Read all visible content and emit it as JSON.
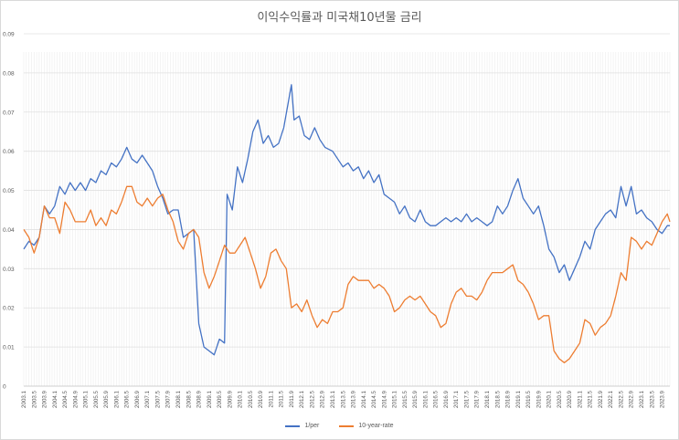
{
  "chart_data": {
    "type": "line",
    "title": "이익수익률과 미국채10년물 금리",
    "xlabel": "",
    "ylabel": "",
    "ylim": [
      0,
      0.09
    ],
    "yticks": [
      "0",
      "0.01",
      "0.02",
      "0.03",
      "0.04",
      "0.05",
      "0.06",
      "0.07",
      "0.08",
      "0.09"
    ],
    "grid": "horizontal",
    "legend_position": "bottom",
    "x_tick_labels": [
      "2003.1",
      "2003.5",
      "2003.9",
      "2004.1",
      "2004.5",
      "2004.9",
      "2005.1",
      "2005.5",
      "2005.9",
      "2006.1",
      "2006.5",
      "2006.9",
      "2007.1",
      "2007.5",
      "2007.9",
      "2008.1",
      "2008.5",
      "2008.9",
      "2009.1",
      "2009.5",
      "2009.9",
      "2010.1",
      "2010.5",
      "2010.9",
      "2011.1",
      "2011.5",
      "2011.9",
      "2012.1",
      "2012.5",
      "2012.9",
      "2013.1",
      "2013.5",
      "2013.9",
      "2014.1",
      "2014.5",
      "2014.9",
      "2015.1",
      "2015.5",
      "2015.9",
      "2016.1",
      "2016.5",
      "2016.9",
      "2017.1",
      "2017.5",
      "2017.9",
      "2018.1",
      "2018.5",
      "2018.9",
      "2019.1",
      "2019.5",
      "2019.9",
      "2020.1",
      "2020.5",
      "2020.9",
      "2021.1",
      "2021.5",
      "2021.9",
      "2022.1",
      "2022.5",
      "2022.9",
      "2023.1",
      "2023.5",
      "2023.9"
    ],
    "colors": {
      "1/per": "#4472C4",
      "10-year-rate": "#ED7D31"
    },
    "x_start": "2003-01",
    "x_end": "2023-12",
    "series": [
      {
        "name": "1/per",
        "points": [
          [
            "2003-01",
            0.035
          ],
          [
            "2003-03",
            0.037
          ],
          [
            "2003-05",
            0.036
          ],
          [
            "2003-07",
            0.038
          ],
          [
            "2003-09",
            0.046
          ],
          [
            "2003-11",
            0.044
          ],
          [
            "2004-01",
            0.046
          ],
          [
            "2004-03",
            0.051
          ],
          [
            "2004-05",
            0.049
          ],
          [
            "2004-07",
            0.052
          ],
          [
            "2004-09",
            0.05
          ],
          [
            "2004-11",
            0.052
          ],
          [
            "2005-01",
            0.05
          ],
          [
            "2005-03",
            0.053
          ],
          [
            "2005-05",
            0.052
          ],
          [
            "2005-07",
            0.055
          ],
          [
            "2005-09",
            0.054
          ],
          [
            "2005-11",
            0.057
          ],
          [
            "2006-01",
            0.056
          ],
          [
            "2006-03",
            0.058
          ],
          [
            "2006-05",
            0.061
          ],
          [
            "2006-07",
            0.058
          ],
          [
            "2006-09",
            0.057
          ],
          [
            "2006-11",
            0.059
          ],
          [
            "2007-01",
            0.057
          ],
          [
            "2007-03",
            0.055
          ],
          [
            "2007-05",
            0.051
          ],
          [
            "2007-07",
            0.048
          ],
          [
            "2007-09",
            0.044
          ],
          [
            "2007-11",
            0.045
          ],
          [
            "2008-01",
            0.045
          ],
          [
            "2008-03",
            0.038
          ],
          [
            "2008-05",
            0.039
          ],
          [
            "2008-07",
            0.04
          ],
          [
            "2008-09",
            0.016
          ],
          [
            "2008-11",
            0.01
          ],
          [
            "2009-01",
            0.009
          ],
          [
            "2009-03",
            0.008
          ],
          [
            "2009-05",
            0.012
          ],
          [
            "2009-07",
            0.011
          ],
          [
            "2009-08",
            0.049
          ],
          [
            "2009-10",
            0.045
          ],
          [
            "2009-12",
            0.056
          ],
          [
            "2010-02",
            0.052
          ],
          [
            "2010-04",
            0.058
          ],
          [
            "2010-06",
            0.065
          ],
          [
            "2010-08",
            0.068
          ],
          [
            "2010-10",
            0.062
          ],
          [
            "2010-12",
            0.064
          ],
          [
            "2011-02",
            0.061
          ],
          [
            "2011-04",
            0.062
          ],
          [
            "2011-06",
            0.066
          ],
          [
            "2011-09",
            0.077
          ],
          [
            "2011-10",
            0.068
          ],
          [
            "2011-12",
            0.069
          ],
          [
            "2012-02",
            0.064
          ],
          [
            "2012-04",
            0.063
          ],
          [
            "2012-06",
            0.066
          ],
          [
            "2012-08",
            0.063
          ],
          [
            "2012-10",
            0.061
          ],
          [
            "2013-01",
            0.06
          ],
          [
            "2013-03",
            0.058
          ],
          [
            "2013-05",
            0.056
          ],
          [
            "2013-07",
            0.057
          ],
          [
            "2013-09",
            0.055
          ],
          [
            "2013-11",
            0.056
          ],
          [
            "2014-01",
            0.053
          ],
          [
            "2014-03",
            0.055
          ],
          [
            "2014-05",
            0.052
          ],
          [
            "2014-07",
            0.054
          ],
          [
            "2014-09",
            0.049
          ],
          [
            "2014-11",
            0.048
          ],
          [
            "2015-01",
            0.047
          ],
          [
            "2015-03",
            0.044
          ],
          [
            "2015-05",
            0.046
          ],
          [
            "2015-07",
            0.043
          ],
          [
            "2015-09",
            0.042
          ],
          [
            "2015-11",
            0.045
          ],
          [
            "2016-01",
            0.042
          ],
          [
            "2016-03",
            0.041
          ],
          [
            "2016-05",
            0.041
          ],
          [
            "2016-07",
            0.042
          ],
          [
            "2016-09",
            0.043
          ],
          [
            "2016-11",
            0.042
          ],
          [
            "2017-01",
            0.043
          ],
          [
            "2017-03",
            0.042
          ],
          [
            "2017-05",
            0.044
          ],
          [
            "2017-07",
            0.042
          ],
          [
            "2017-09",
            0.043
          ],
          [
            "2017-11",
            0.042
          ],
          [
            "2018-01",
            0.041
          ],
          [
            "2018-03",
            0.042
          ],
          [
            "2018-05",
            0.046
          ],
          [
            "2018-07",
            0.044
          ],
          [
            "2018-09",
            0.046
          ],
          [
            "2018-11",
            0.05
          ],
          [
            "2019-01",
            0.053
          ],
          [
            "2019-03",
            0.048
          ],
          [
            "2019-05",
            0.046
          ],
          [
            "2019-07",
            0.044
          ],
          [
            "2019-09",
            0.046
          ],
          [
            "2019-11",
            0.041
          ],
          [
            "2020-01",
            0.035
          ],
          [
            "2020-03",
            0.033
          ],
          [
            "2020-05",
            0.029
          ],
          [
            "2020-07",
            0.031
          ],
          [
            "2020-09",
            0.027
          ],
          [
            "2020-11",
            0.03
          ],
          [
            "2021-01",
            0.033
          ],
          [
            "2021-03",
            0.037
          ],
          [
            "2021-05",
            0.035
          ],
          [
            "2021-07",
            0.04
          ],
          [
            "2021-09",
            0.042
          ],
          [
            "2021-11",
            0.044
          ],
          [
            "2022-01",
            0.045
          ],
          [
            "2022-03",
            0.043
          ],
          [
            "2022-05",
            0.051
          ],
          [
            "2022-07",
            0.046
          ],
          [
            "2022-09",
            0.051
          ],
          [
            "2022-11",
            0.044
          ],
          [
            "2023-01",
            0.045
          ],
          [
            "2023-03",
            0.043
          ],
          [
            "2023-05",
            0.042
          ],
          [
            "2023-07",
            0.04
          ],
          [
            "2023-09",
            0.039
          ],
          [
            "2023-11",
            0.041
          ],
          [
            "2023-12",
            0.041
          ]
        ]
      },
      {
        "name": "10-year-rate",
        "points": [
          [
            "2003-01",
            0.04
          ],
          [
            "2003-03",
            0.038
          ],
          [
            "2003-05",
            0.034
          ],
          [
            "2003-07",
            0.038
          ],
          [
            "2003-09",
            0.046
          ],
          [
            "2003-11",
            0.043
          ],
          [
            "2004-01",
            0.043
          ],
          [
            "2004-03",
            0.039
          ],
          [
            "2004-05",
            0.047
          ],
          [
            "2004-07",
            0.045
          ],
          [
            "2004-09",
            0.042
          ],
          [
            "2004-11",
            0.042
          ],
          [
            "2005-01",
            0.042
          ],
          [
            "2005-03",
            0.045
          ],
          [
            "2005-05",
            0.041
          ],
          [
            "2005-07",
            0.043
          ],
          [
            "2005-09",
            0.041
          ],
          [
            "2005-11",
            0.045
          ],
          [
            "2006-01",
            0.044
          ],
          [
            "2006-03",
            0.047
          ],
          [
            "2006-05",
            0.051
          ],
          [
            "2006-07",
            0.051
          ],
          [
            "2006-09",
            0.047
          ],
          [
            "2006-11",
            0.046
          ],
          [
            "2007-01",
            0.048
          ],
          [
            "2007-03",
            0.046
          ],
          [
            "2007-05",
            0.048
          ],
          [
            "2007-07",
            0.049
          ],
          [
            "2007-09",
            0.045
          ],
          [
            "2007-11",
            0.042
          ],
          [
            "2008-01",
            0.037
          ],
          [
            "2008-03",
            0.035
          ],
          [
            "2008-05",
            0.039
          ],
          [
            "2008-07",
            0.04
          ],
          [
            "2008-09",
            0.038
          ],
          [
            "2008-11",
            0.029
          ],
          [
            "2009-01",
            0.025
          ],
          [
            "2009-03",
            0.028
          ],
          [
            "2009-05",
            0.032
          ],
          [
            "2009-07",
            0.036
          ],
          [
            "2009-09",
            0.034
          ],
          [
            "2009-11",
            0.034
          ],
          [
            "2010-01",
            0.036
          ],
          [
            "2010-03",
            0.038
          ],
          [
            "2010-05",
            0.034
          ],
          [
            "2010-07",
            0.03
          ],
          [
            "2010-09",
            0.025
          ],
          [
            "2010-11",
            0.028
          ],
          [
            "2011-01",
            0.034
          ],
          [
            "2011-03",
            0.035
          ],
          [
            "2011-05",
            0.032
          ],
          [
            "2011-07",
            0.03
          ],
          [
            "2011-09",
            0.02
          ],
          [
            "2011-11",
            0.021
          ],
          [
            "2012-01",
            0.019
          ],
          [
            "2012-03",
            0.022
          ],
          [
            "2012-05",
            0.018
          ],
          [
            "2012-07",
            0.015
          ],
          [
            "2012-09",
            0.017
          ],
          [
            "2012-11",
            0.016
          ],
          [
            "2013-01",
            0.019
          ],
          [
            "2013-03",
            0.019
          ],
          [
            "2013-05",
            0.02
          ],
          [
            "2013-07",
            0.026
          ],
          [
            "2013-09",
            0.028
          ],
          [
            "2013-11",
            0.027
          ],
          [
            "2014-01",
            0.027
          ],
          [
            "2014-03",
            0.027
          ],
          [
            "2014-05",
            0.025
          ],
          [
            "2014-07",
            0.026
          ],
          [
            "2014-09",
            0.025
          ],
          [
            "2014-11",
            0.023
          ],
          [
            "2015-01",
            0.019
          ],
          [
            "2015-03",
            0.02
          ],
          [
            "2015-05",
            0.022
          ],
          [
            "2015-07",
            0.023
          ],
          [
            "2015-09",
            0.022
          ],
          [
            "2015-11",
            0.023
          ],
          [
            "2016-01",
            0.021
          ],
          [
            "2016-03",
            0.019
          ],
          [
            "2016-05",
            0.018
          ],
          [
            "2016-07",
            0.015
          ],
          [
            "2016-09",
            0.016
          ],
          [
            "2016-11",
            0.021
          ],
          [
            "2017-01",
            0.024
          ],
          [
            "2017-03",
            0.025
          ],
          [
            "2017-05",
            0.023
          ],
          [
            "2017-07",
            0.023
          ],
          [
            "2017-09",
            0.022
          ],
          [
            "2017-11",
            0.024
          ],
          [
            "2018-01",
            0.027
          ],
          [
            "2018-03",
            0.029
          ],
          [
            "2018-05",
            0.029
          ],
          [
            "2018-07",
            0.029
          ],
          [
            "2018-09",
            0.03
          ],
          [
            "2018-11",
            0.031
          ],
          [
            "2019-01",
            0.027
          ],
          [
            "2019-03",
            0.026
          ],
          [
            "2019-05",
            0.024
          ],
          [
            "2019-07",
            0.021
          ],
          [
            "2019-09",
            0.017
          ],
          [
            "2019-11",
            0.018
          ],
          [
            "2020-01",
            0.018
          ],
          [
            "2020-03",
            0.009
          ],
          [
            "2020-05",
            0.007
          ],
          [
            "2020-07",
            0.006
          ],
          [
            "2020-09",
            0.007
          ],
          [
            "2020-11",
            0.009
          ],
          [
            "2021-01",
            0.011
          ],
          [
            "2021-03",
            0.017
          ],
          [
            "2021-05",
            0.016
          ],
          [
            "2021-07",
            0.013
          ],
          [
            "2021-09",
            0.015
          ],
          [
            "2021-11",
            0.016
          ],
          [
            "2022-01",
            0.018
          ],
          [
            "2022-03",
            0.023
          ],
          [
            "2022-05",
            0.029
          ],
          [
            "2022-07",
            0.027
          ],
          [
            "2022-09",
            0.038
          ],
          [
            "2022-11",
            0.037
          ],
          [
            "2023-01",
            0.035
          ],
          [
            "2023-03",
            0.037
          ],
          [
            "2023-05",
            0.036
          ],
          [
            "2023-07",
            0.039
          ],
          [
            "2023-09",
            0.042
          ],
          [
            "2023-11",
            0.044
          ],
          [
            "2023-12",
            0.042
          ]
        ]
      }
    ]
  }
}
